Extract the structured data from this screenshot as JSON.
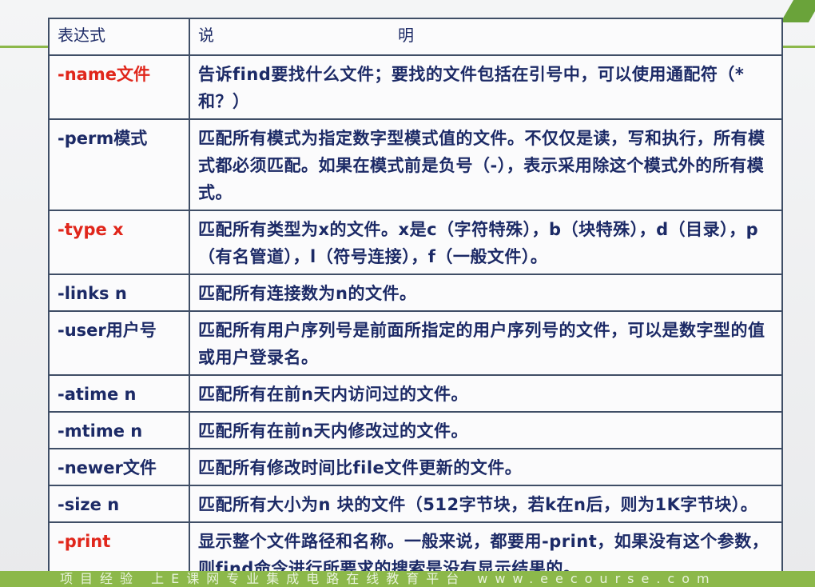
{
  "table": {
    "header": [
      "表达式",
      "说明"
    ],
    "rows": [
      {
        "expression": "-name文件",
        "description": "告诉find要找什么文件；要找的文件包括在引号中，可以使用通配符（*和？）",
        "color": "#e0261b"
      },
      {
        "expression": "-perm模式",
        "description": "匹配所有模式为指定数字型模式值的文件。不仅仅是读，写和执行，所有模式都必须匹配。如果在模式前是负号（-），表示采用除这个模式外的所有模式。",
        "color": "#1c2a66"
      },
      {
        "expression": "-type x",
        "description": "匹配所有类型为x的文件。x是c（字符特殊），b（块特殊），d（目录），p（有名管道），l（符号连接），f（一般文件）。",
        "color": "#e0261b"
      },
      {
        "expression": "-links n",
        "description": "匹配所有连接数为n的文件。",
        "color": "#1c2a66"
      },
      {
        "expression": "-user用户号",
        "description": "匹配所有用户序列号是前面所指定的用户序列号的文件，可以是数字型的值或用户登录名。",
        "color": "#1c2a66"
      },
      {
        "expression": "-atime n",
        "description": "匹配所有在前n天内访问过的文件。",
        "color": "#1c2a66"
      },
      {
        "expression": "-mtime n",
        "description": "匹配所有在前n天内修改过的文件。",
        "color": "#1c2a66"
      },
      {
        "expression": "-newer文件",
        "description": "匹配所有修改时间比file文件更新的文件。",
        "color": "#1c2a66"
      },
      {
        "expression": "-size n",
        "description": "匹配所有大小为n 块的文件（512字节块，若k在n后，则为1K字节块）。",
        "color": "#1c2a66"
      },
      {
        "expression": "-print",
        "description": "显示整个文件路径和名称。一般来说，都要用-print，如果没有这个参数，则find命令进行所要求的搜索是没有显示结果的。",
        "color": "#e0261b"
      }
    ]
  },
  "footer": "项目经验 上E课网专业集成电路在线教育平台 www.eecourse.com"
}
